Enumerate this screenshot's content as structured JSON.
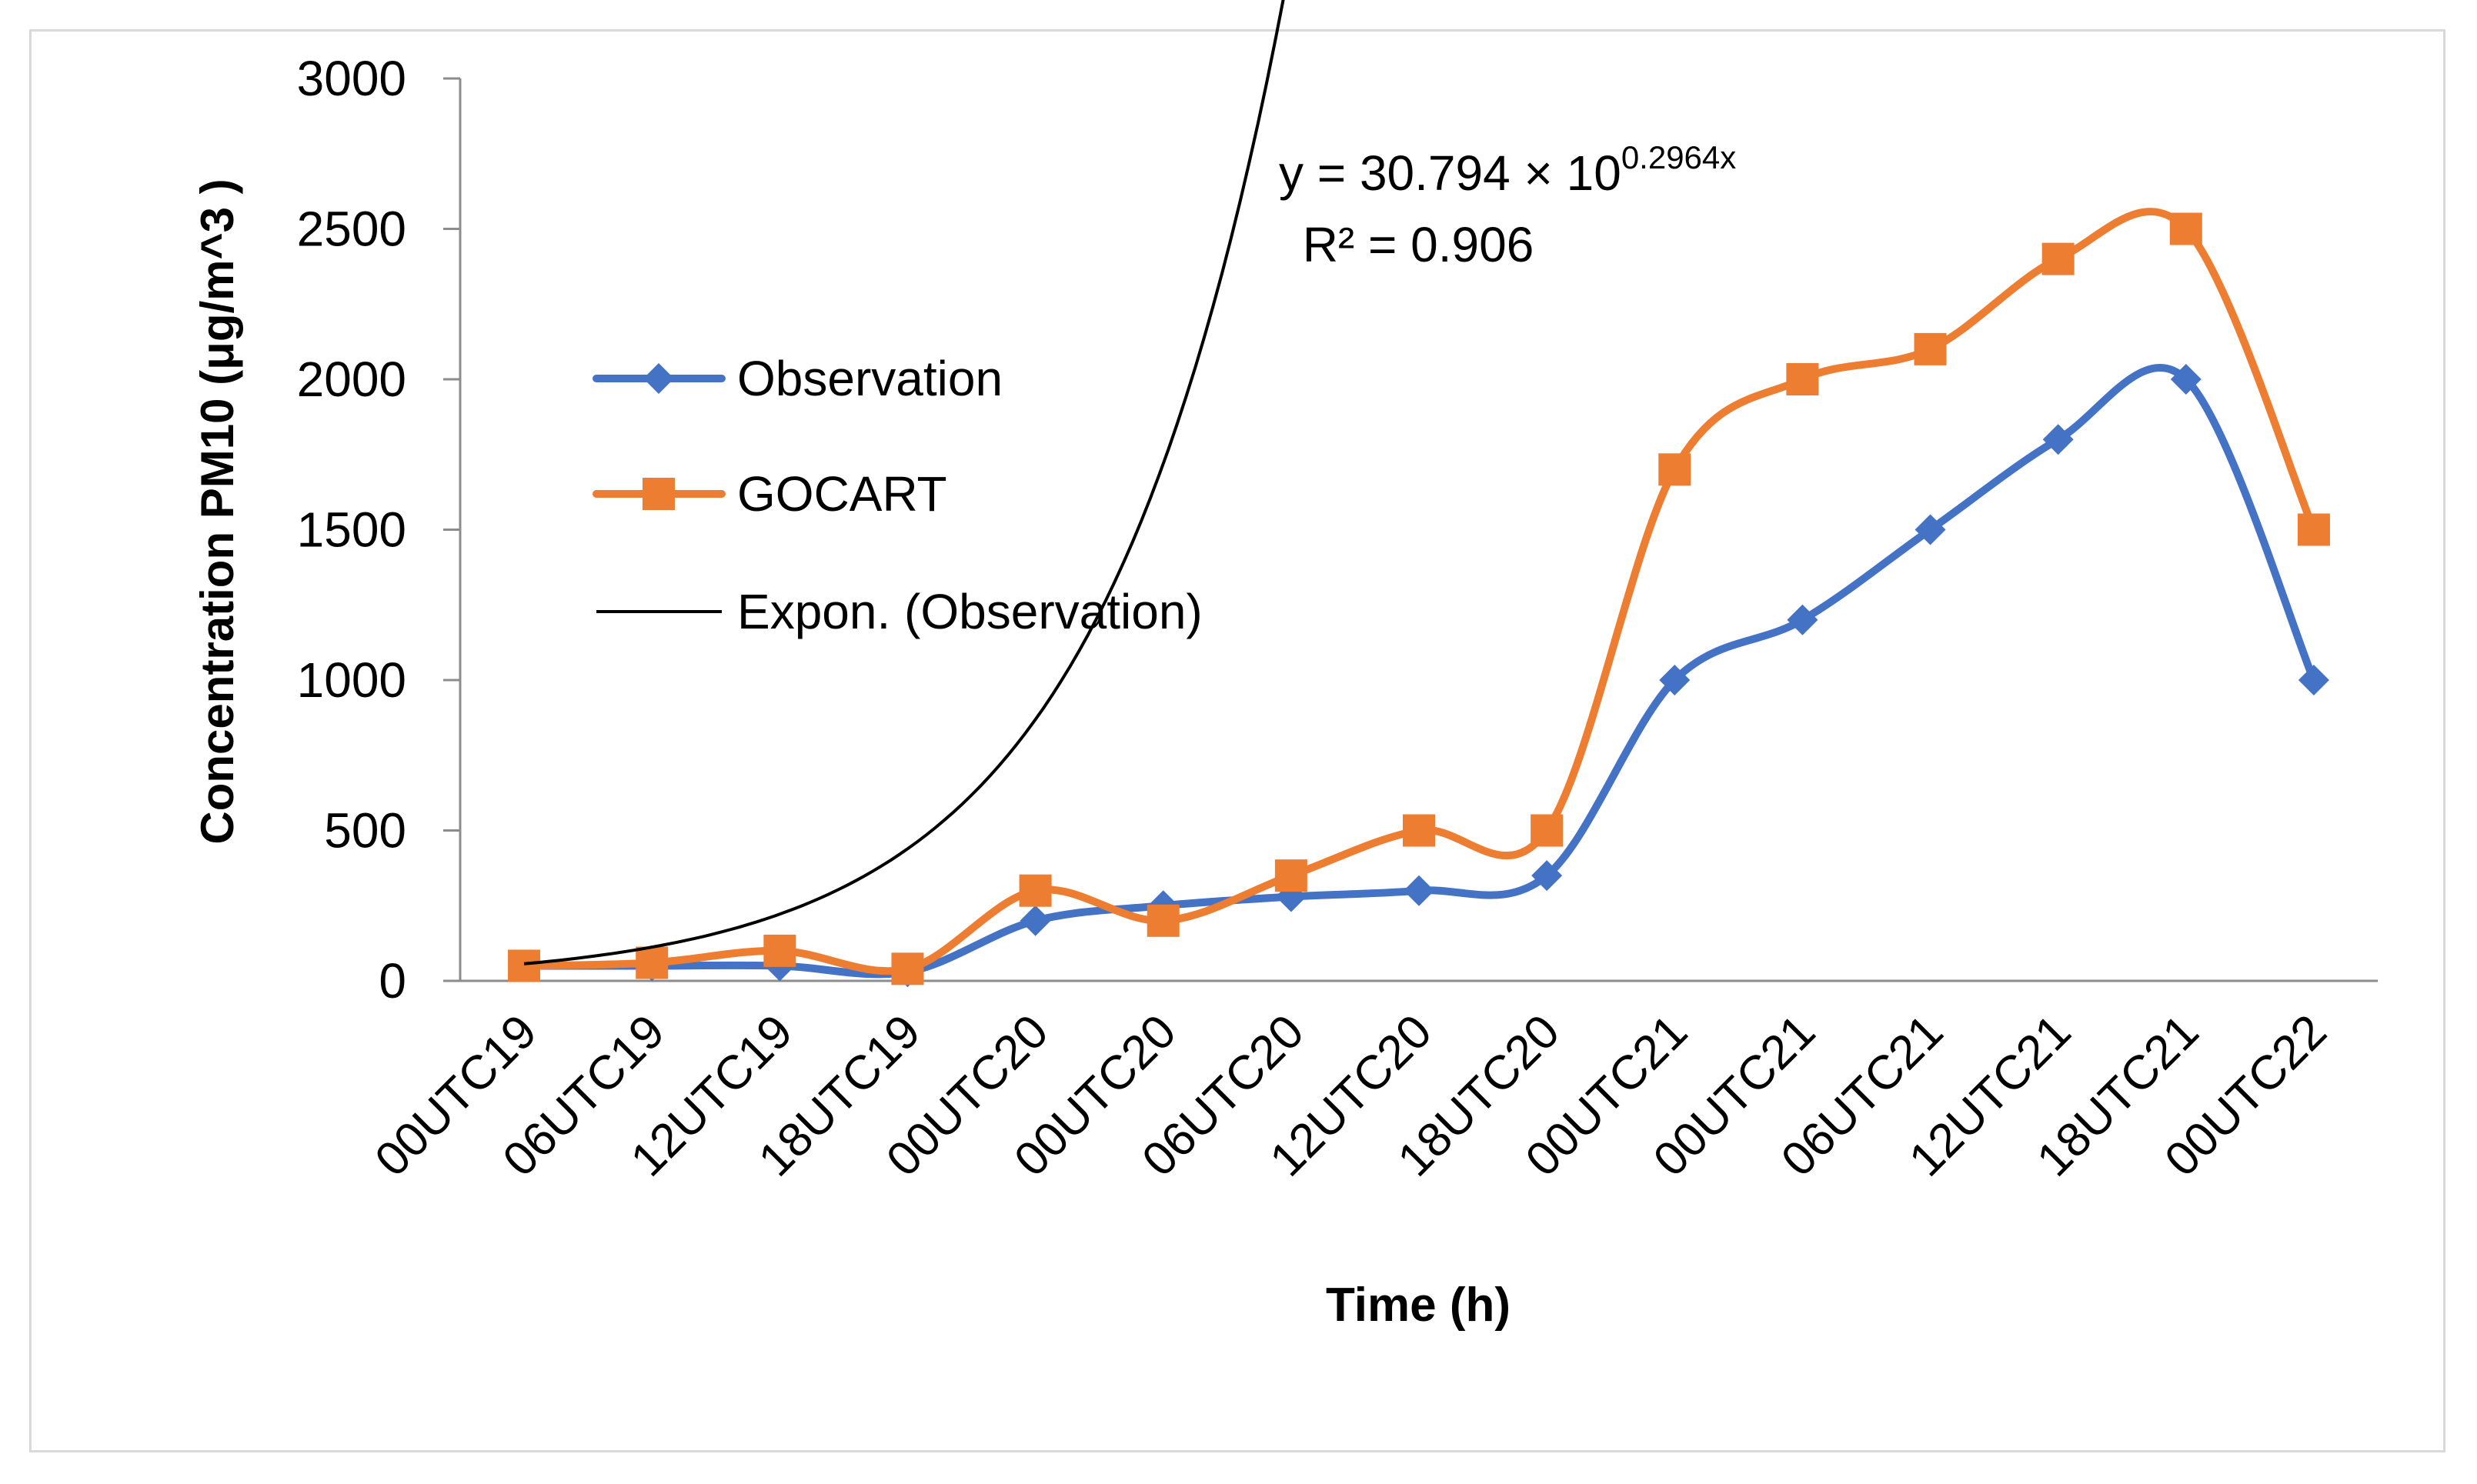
{
  "chart_data": {
    "type": "line",
    "title": "",
    "xlabel": "Time (h)",
    "ylabel": "Concentration PM10 (μg/m^3 )",
    "ylim": [
      0,
      3000
    ],
    "yticks": [
      0,
      500,
      1000,
      1500,
      2000,
      2500,
      3000
    ],
    "grid": false,
    "legend_position": "left",
    "categories": [
      "00UTC19",
      "06UTC19",
      "12UTC19",
      "18UTC19",
      "00UTC20",
      "00UTC20",
      "06UTC20",
      "12UTC20",
      "18UTC20",
      "00UTC21",
      "00UTC21",
      "06UTC21",
      "12UTC21",
      "18UTC21",
      "00UTC22"
    ],
    "series": [
      {
        "name": "Observation",
        "color": "#4472c4",
        "marker": "diamond",
        "smooth": true,
        "values": [
          50,
          50,
          50,
          30,
          200,
          250,
          280,
          300,
          350,
          1000,
          1200,
          1500,
          1800,
          2000,
          1000
        ]
      },
      {
        "name": "GOCART",
        "color": "#ed7d31",
        "marker": "square",
        "smooth": true,
        "values": [
          50,
          60,
          100,
          40,
          300,
          200,
          350,
          500,
          500,
          1700,
          2000,
          2100,
          2400,
          2500,
          1500
        ]
      }
    ],
    "trendline": {
      "name": "Expon. (Observation)",
      "color": "#000000",
      "a": 30.794,
      "b": 0.2964,
      "equation_prefix": "y = 30.794 × 10",
      "equation_exponent": "0.2964x",
      "r_squared": "R² = 0.906"
    }
  }
}
